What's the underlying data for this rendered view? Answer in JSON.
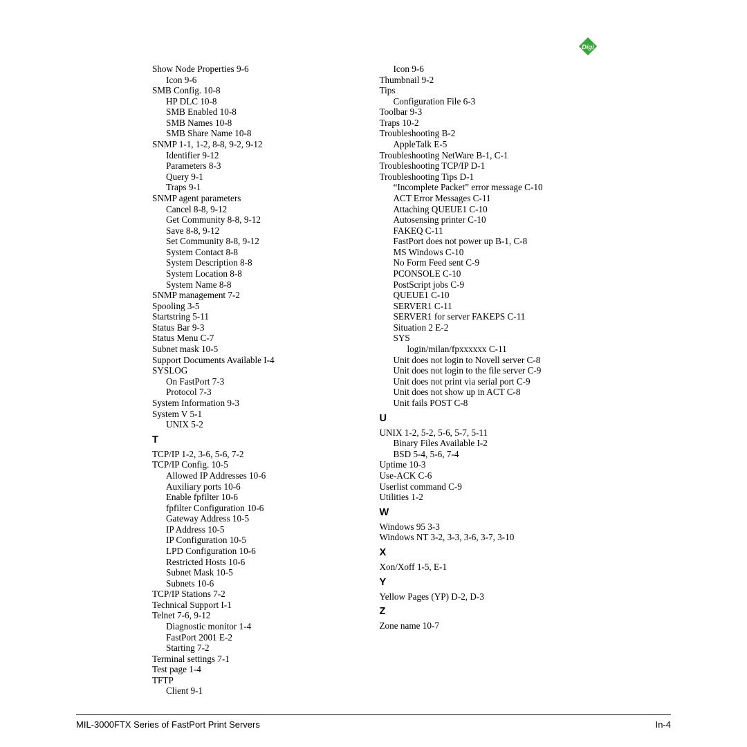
{
  "logo_text": "Digi",
  "logo_bg": "#37a639",
  "logo_fg": "#ffffff",
  "footer_left": "MIL-3000FTX Series of FastPort Print Servers",
  "footer_right": "In-4",
  "col1": [
    {
      "t": "Show Node Properties 9-6"
    },
    {
      "t": "Icon 9-6",
      "i": 1
    },
    {
      "t": "SMB Config. 10-8"
    },
    {
      "t": "HP DLC 10-8",
      "i": 1
    },
    {
      "t": "SMB Enabled 10-8",
      "i": 1
    },
    {
      "t": "SMB Names 10-8",
      "i": 1
    },
    {
      "t": "SMB Share Name 10-8",
      "i": 1
    },
    {
      "t": "SNMP 1-1, 1-2, 8-8, 9-2, 9-12"
    },
    {
      "t": "Identifier 9-12",
      "i": 1
    },
    {
      "t": "Parameters 8-3",
      "i": 1
    },
    {
      "t": "Query 9-1",
      "i": 1
    },
    {
      "t": "Traps 9-1",
      "i": 1
    },
    {
      "t": "SNMP agent parameters"
    },
    {
      "t": "Cancel 8-8, 9-12",
      "i": 1
    },
    {
      "t": "Get Community 8-8, 9-12",
      "i": 1
    },
    {
      "t": "Save 8-8, 9-12",
      "i": 1
    },
    {
      "t": "Set Community 8-8, 9-12",
      "i": 1
    },
    {
      "t": "System Contact 8-8",
      "i": 1
    },
    {
      "t": "System Description 8-8",
      "i": 1
    },
    {
      "t": "System Location 8-8",
      "i": 1
    },
    {
      "t": "System Name 8-8",
      "i": 1
    },
    {
      "t": "SNMP management 7-2"
    },
    {
      "t": "Spooling 3-5"
    },
    {
      "t": "Startstring 5-11"
    },
    {
      "t": "Status Bar 9-3"
    },
    {
      "t": "Status Menu C-7"
    },
    {
      "t": "Subnet mask 10-5"
    },
    {
      "t": "Support Documents Available I-4"
    },
    {
      "t": "SYSLOG"
    },
    {
      "t": "On FastPort 7-3",
      "i": 1
    },
    {
      "t": "Protocol 7-3",
      "i": 1
    },
    {
      "t": "System Information 9-3"
    },
    {
      "t": "System V 5-1"
    },
    {
      "t": "UNIX 5-2",
      "i": 1
    },
    {
      "letter": "T"
    },
    {
      "t": "TCP/IP 1-2, 3-6, 5-6, 7-2"
    },
    {
      "t": "TCP/IP Config. 10-5"
    },
    {
      "t": "Allowed IP Addresses 10-6",
      "i": 1
    },
    {
      "t": "Auxiliary ports 10-6",
      "i": 1
    },
    {
      "t": "Enable fpfilter 10-6",
      "i": 1
    },
    {
      "t": "fpfilter Configuration 10-6",
      "i": 1
    },
    {
      "t": "Gateway Address 10-5",
      "i": 1
    },
    {
      "t": "IP Address 10-5",
      "i": 1
    },
    {
      "t": "IP Configuration 10-5",
      "i": 1
    },
    {
      "t": "LPD Configuration 10-6",
      "i": 1
    },
    {
      "t": "Restricted Hosts 10-6",
      "i": 1
    },
    {
      "t": "Subnet Mask 10-5",
      "i": 1
    },
    {
      "t": "Subnets 10-6",
      "i": 1
    },
    {
      "t": "TCP/IP Stations 7-2"
    },
    {
      "t": "Technical Support I-1"
    },
    {
      "t": "Telnet 7-6, 9-12"
    },
    {
      "t": "Diagnostic monitor 1-4",
      "i": 1
    },
    {
      "t": "FastPort 2001 E-2",
      "i": 1
    },
    {
      "t": "Starting 7-2",
      "i": 1
    },
    {
      "t": "Terminal settings 7-1"
    },
    {
      "t": "Test page 1-4"
    },
    {
      "t": "TFTP"
    },
    {
      "t": "Client 9-1",
      "i": 1
    }
  ],
  "col2": [
    {
      "t": "Icon 9-6",
      "i": 1
    },
    {
      "t": "Thumbnail 9-2"
    },
    {
      "t": "Tips"
    },
    {
      "t": "Configuration File 6-3",
      "i": 1
    },
    {
      "t": "Toolbar 9-3"
    },
    {
      "t": "Traps 10-2"
    },
    {
      "t": "Troubleshooting B-2"
    },
    {
      "t": "AppleTalk E-5",
      "i": 1
    },
    {
      "t": "Troubleshooting NetWare B-1, C-1"
    },
    {
      "t": "Troubleshooting TCP/IP D-1"
    },
    {
      "t": "Troubleshooting Tips D-1"
    },
    {
      "t": "“Incomplete Packet” error message C-10",
      "i": 1
    },
    {
      "t": "ACT Error Messages C-11",
      "i": 1
    },
    {
      "t": "Attaching QUEUE1 C-10",
      "i": 1
    },
    {
      "t": "Autosensing printer C-10",
      "i": 1
    },
    {
      "t": "FAKEQ C-11",
      "i": 1
    },
    {
      "t": "FastPort does not power up B-1, C-8",
      "i": 1
    },
    {
      "t": "MS Windows C-10",
      "i": 1
    },
    {
      "t": "No Form Feed sent C-9",
      "i": 1
    },
    {
      "t": "PCONSOLE C-10",
      "i": 1
    },
    {
      "t": "PostScript jobs C-9",
      "i": 1
    },
    {
      "t": "QUEUE1 C-10",
      "i": 1
    },
    {
      "t": "SERVER1 C-11",
      "i": 1
    },
    {
      "t": "SERVER1 for server FAKEPS C-11",
      "i": 1
    },
    {
      "t": "Situation 2 E-2",
      "i": 1
    },
    {
      "t": "SYS",
      "i": 1
    },
    {
      "t": "login/milan/fpxxxxxx C-11",
      "i": 2
    },
    {
      "t": "Unit does not login to Novell server C-8",
      "i": 1
    },
    {
      "t": "Unit does not login to the file server C-9",
      "i": 1
    },
    {
      "t": "Unit does not print via serial port C-9",
      "i": 1
    },
    {
      "t": "Unit does not show up in ACT C-8",
      "i": 1
    },
    {
      "t": "Unit fails POST C-8",
      "i": 1
    },
    {
      "letter": "U"
    },
    {
      "t": "UNIX 1-2, 5-2, 5-6, 5-7, 5-11"
    },
    {
      "t": "Binary Files Available I-2",
      "i": 1
    },
    {
      "t": "BSD 5-4, 5-6, 7-4",
      "i": 1
    },
    {
      "t": "Uptime 10-3"
    },
    {
      "t": "Use-ACK C-6"
    },
    {
      "t": "Userlist command C-9"
    },
    {
      "t": "Utilities 1-2"
    },
    {
      "letter": "W"
    },
    {
      "t": "Windows 95 3-3"
    },
    {
      "t": "Windows NT 3-2, 3-3, 3-6, 3-7, 3-10"
    },
    {
      "letter": "X"
    },
    {
      "t": "Xon/Xoff 1-5, E-1"
    },
    {
      "letter": "Y"
    },
    {
      "t": "Yellow Pages (YP) D-2, D-3"
    },
    {
      "letter": "Z"
    },
    {
      "t": "Zone name 10-7"
    }
  ]
}
